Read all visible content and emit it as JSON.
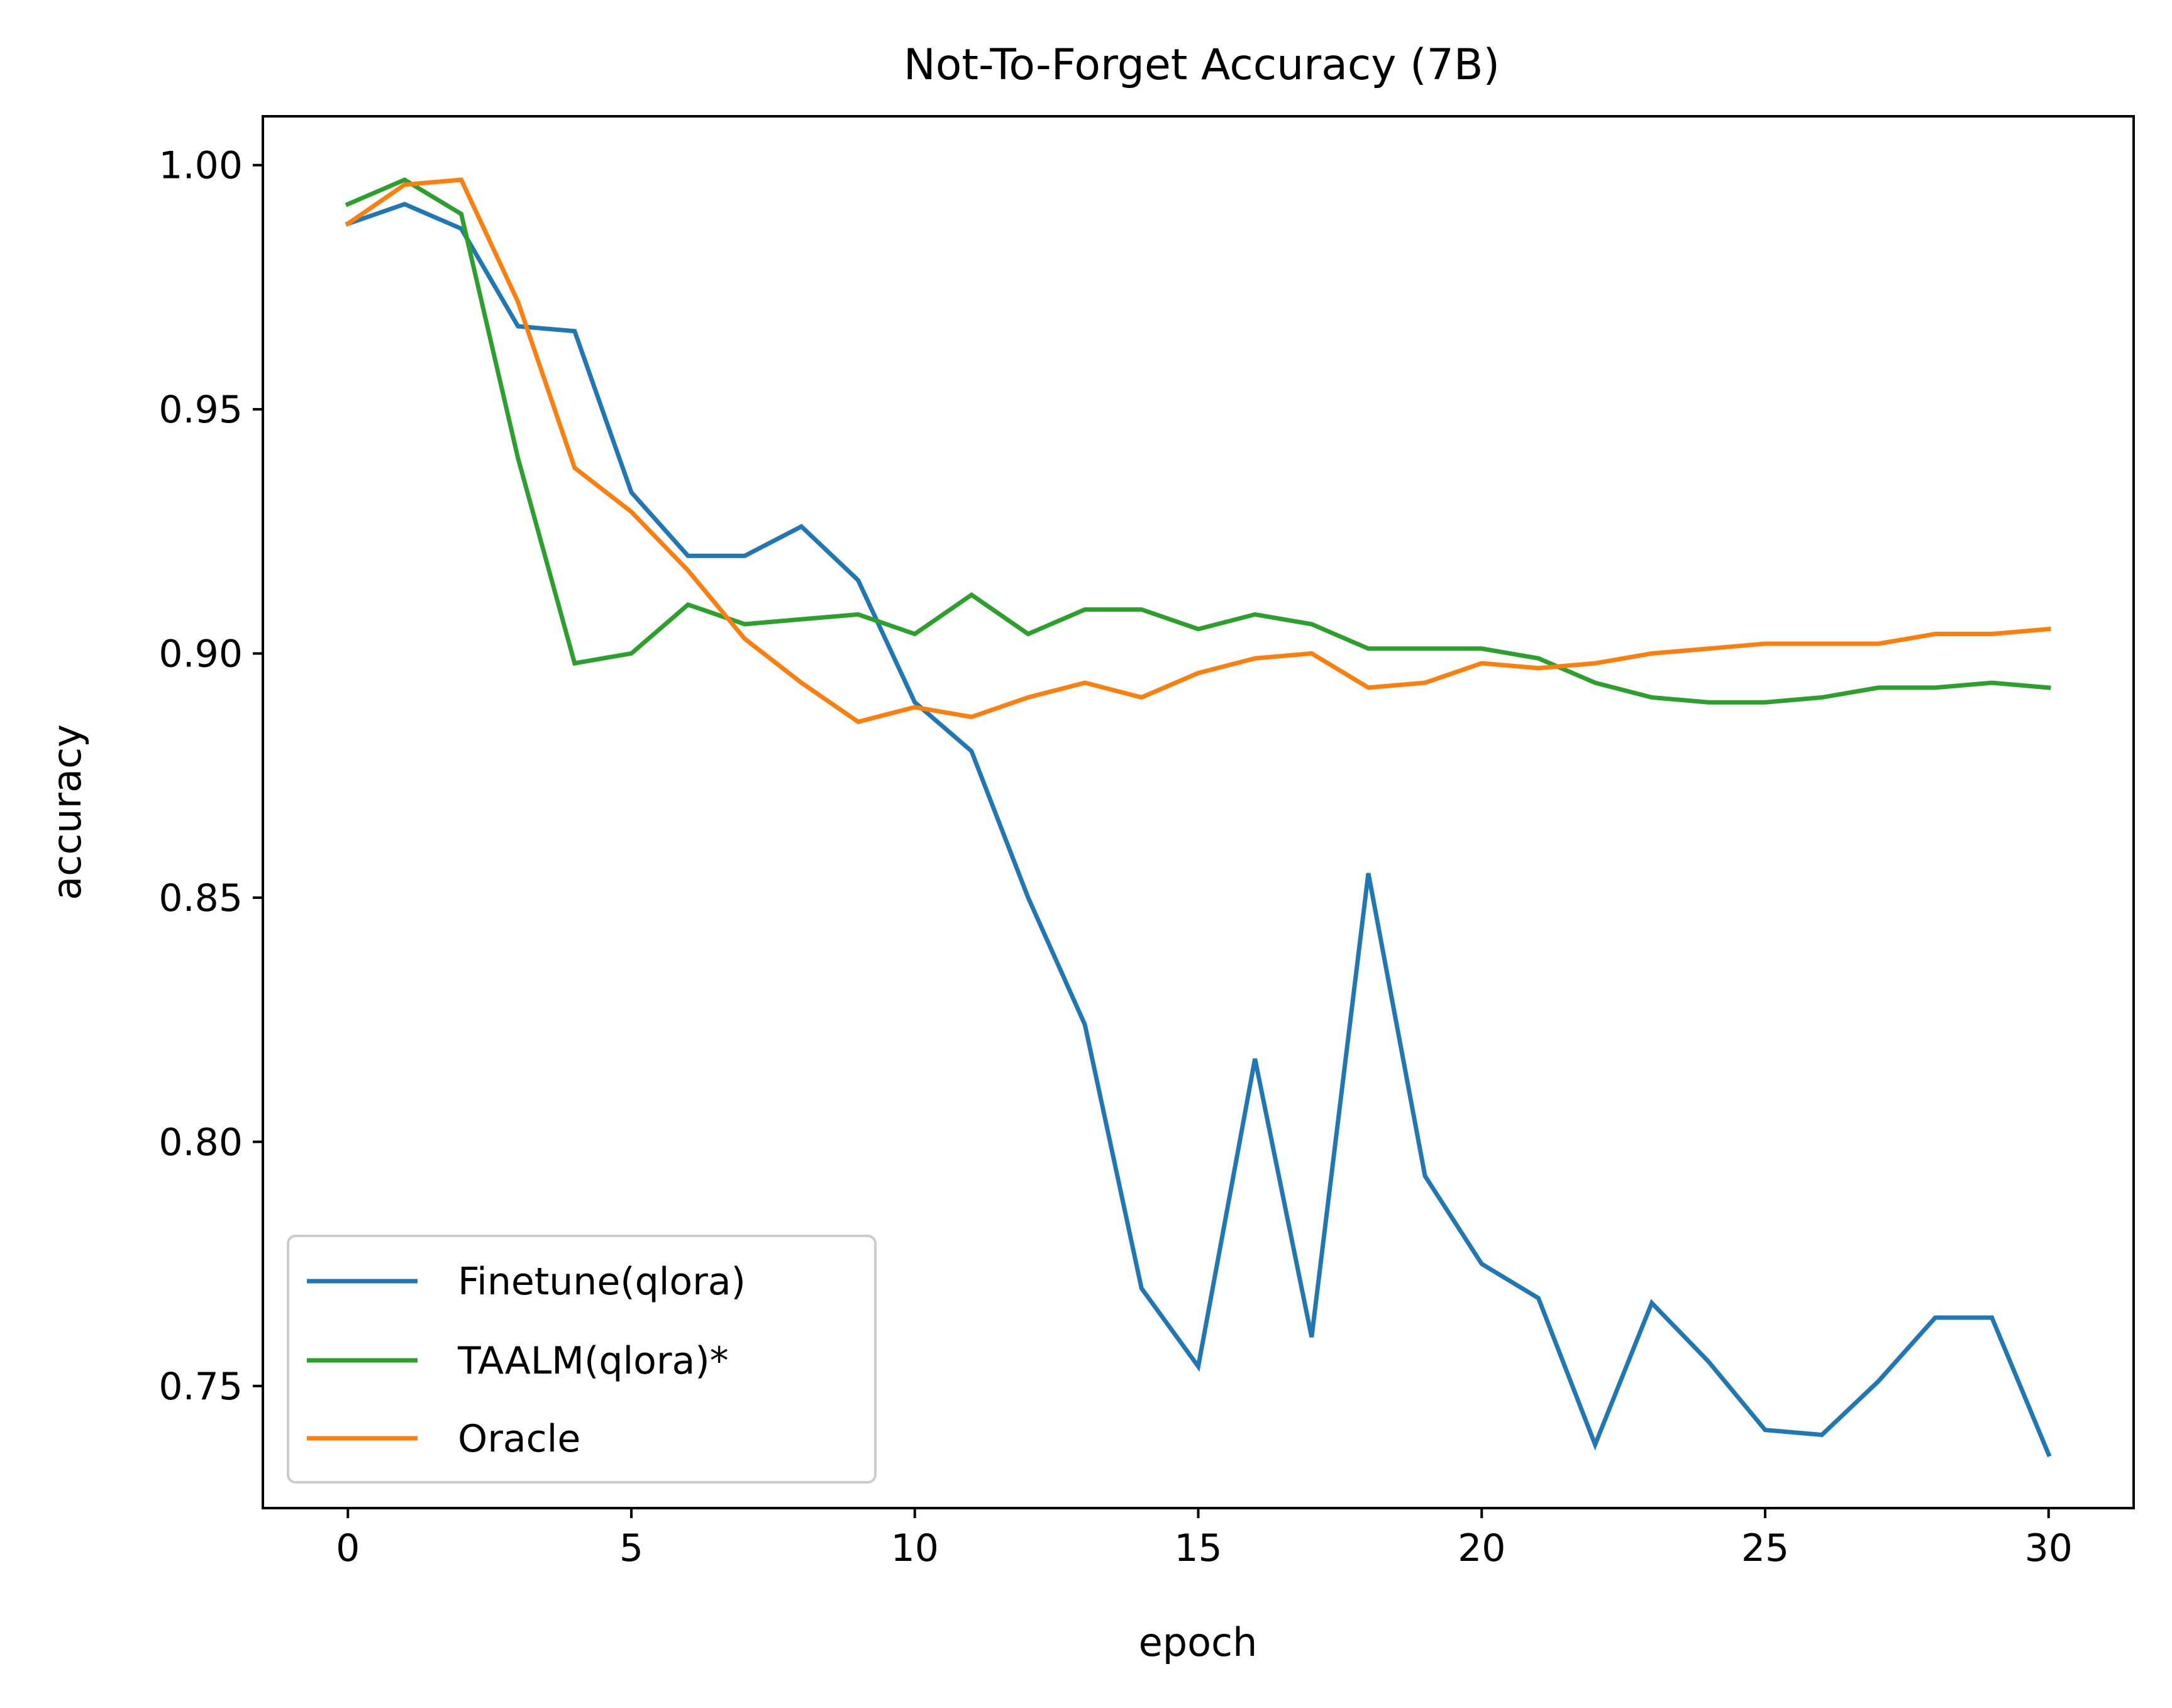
{
  "chart_data": {
    "type": "line",
    "title": "Not-To-Forget Accuracy (7B)",
    "xlabel": "epoch",
    "ylabel": "accuracy",
    "xlim": [
      -1.5,
      31.5
    ],
    "ylim": [
      0.725,
      1.01
    ],
    "xticks": [
      0,
      5,
      10,
      15,
      20,
      25,
      30
    ],
    "xtick_labels": [
      "0",
      "5",
      "10",
      "15",
      "20",
      "25",
      "30"
    ],
    "yticks": [
      0.75,
      0.8,
      0.85,
      0.9,
      0.95,
      1.0
    ],
    "ytick_labels": [
      "0.75",
      "0.80",
      "0.85",
      "0.90",
      "0.95",
      "1.00"
    ],
    "grid": false,
    "legend_position": "lower-left",
    "x": [
      0,
      1,
      2,
      3,
      4,
      5,
      6,
      7,
      8,
      9,
      10,
      11,
      12,
      13,
      14,
      15,
      16,
      17,
      18,
      19,
      20,
      21,
      22,
      23,
      24,
      25,
      26,
      27,
      28,
      29,
      30
    ],
    "series": [
      {
        "name": "Finetune(qlora)",
        "color": "#1f77b4",
        "values": [
          0.988,
          0.992,
          0.987,
          0.967,
          0.966,
          0.933,
          0.92,
          0.92,
          0.926,
          0.915,
          0.89,
          0.88,
          0.85,
          0.824,
          0.77,
          0.754,
          0.817,
          0.76,
          0.855,
          0.793,
          0.775,
          0.768,
          0.738,
          0.767,
          0.755,
          0.741,
          0.74,
          0.751,
          0.764,
          0.764,
          0.736
        ]
      },
      {
        "name": "TAALM(qlora)*",
        "color": "#2ca02c",
        "values": [
          0.992,
          0.997,
          0.99,
          0.94,
          0.898,
          0.9,
          0.91,
          0.906,
          0.907,
          0.908,
          0.904,
          0.912,
          0.904,
          0.909,
          0.909,
          0.905,
          0.908,
          0.906,
          0.901,
          0.901,
          0.901,
          0.899,
          0.894,
          0.891,
          0.89,
          0.89,
          0.891,
          0.893,
          0.893,
          0.894,
          0.893
        ]
      },
      {
        "name": "Oracle",
        "color": "#ff7f0e",
        "values": [
          0.988,
          0.996,
          0.997,
          0.972,
          0.938,
          0.929,
          0.917,
          0.903,
          0.894,
          0.886,
          0.889,
          0.887,
          0.891,
          0.894,
          0.891,
          0.896,
          0.899,
          0.9,
          0.893,
          0.894,
          0.898,
          0.897,
          0.898,
          0.9,
          0.901,
          0.902,
          0.902,
          0.902,
          0.904,
          0.904,
          0.905
        ]
      }
    ]
  }
}
